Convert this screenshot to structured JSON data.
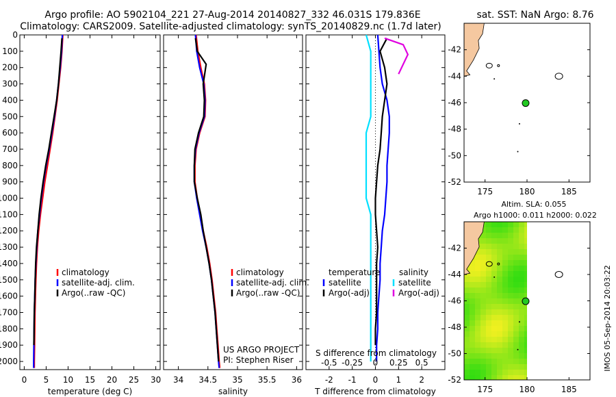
{
  "header": {
    "line1": "Argo profile: AO 5902104_221 27-Aug-2014 20140827_332 46.031S 179.836E",
    "line2": "Climatology: CARS2009. Satellite-adjusted climatology: synTS_20140829.nc (1.7d later)"
  },
  "colors": {
    "climatology": "#ff0000",
    "satellite_adj_clim": "#0000ff",
    "argo": "#000000",
    "salinity_satellite": "#00e0ff",
    "salinity_argo": "#e000e0",
    "land": "#f5c8a0",
    "argo_position": "#22c922",
    "sla_field": "#33dd11",
    "sla_high": "#f0f020"
  },
  "chart_data": [
    {
      "id": "temperature",
      "type": "line",
      "xlabel": "temperature (deg C)",
      "ylabel": "",
      "xlim": [
        -1,
        31
      ],
      "ylim": [
        2050,
        0
      ],
      "xticks": [
        0,
        5,
        10,
        15,
        20,
        25,
        30
      ],
      "yticks": [
        0,
        100,
        200,
        300,
        400,
        500,
        600,
        700,
        800,
        900,
        1000,
        1100,
        1200,
        1300,
        1400,
        1500,
        1600,
        1700,
        1800,
        1900,
        2000
      ],
      "legend": [
        "climatology",
        "satellite-adj. clim.",
        "Argo(..raw -QC)"
      ],
      "legend_placement": "lower-center",
      "series": [
        {
          "name": "climatology",
          "color": "#ff0000",
          "x": [
            8.8,
            8.6,
            8.3,
            7.9,
            7.5,
            7.0,
            6.5,
            5.9,
            5.3,
            4.7,
            4.2,
            3.7,
            3.3,
            3.0,
            2.8,
            2.65,
            2.55,
            2.45,
            2.4,
            2.35,
            2.3,
            2.3
          ],
          "y": [
            0,
            100,
            200,
            300,
            400,
            500,
            600,
            700,
            800,
            900,
            1000,
            1100,
            1200,
            1300,
            1400,
            1500,
            1600,
            1700,
            1800,
            1900,
            2000,
            2040
          ]
        },
        {
          "name": "satellite-adj. clim.",
          "color": "#0000ff",
          "x": [
            8.7,
            8.5,
            8.2,
            7.8,
            7.4,
            6.9,
            6.3,
            5.7,
            5.0,
            4.4,
            3.9,
            3.5,
            3.1,
            2.85,
            2.65,
            2.5,
            2.4,
            2.3,
            2.25,
            2.2,
            2.15,
            2.15
          ],
          "y": [
            0,
            100,
            200,
            300,
            400,
            500,
            600,
            700,
            800,
            900,
            1000,
            1100,
            1200,
            1300,
            1400,
            1500,
            1600,
            1700,
            1800,
            1900,
            2000,
            2040
          ]
        },
        {
          "name": "Argo(..raw -QC)",
          "color": "#000000",
          "x": [
            8.6,
            8.4,
            8.1,
            7.8,
            7.4,
            6.8,
            6.2,
            5.6,
            4.9,
            4.3,
            3.8,
            3.4,
            3.1,
            2.8,
            2.6,
            2.5,
            2.4,
            2.3,
            2.25,
            2.2
          ],
          "y": [
            20,
            100,
            200,
            300,
            400,
            500,
            600,
            700,
            800,
            900,
            1000,
            1100,
            1200,
            1300,
            1400,
            1500,
            1600,
            1700,
            1800,
            1900
          ]
        }
      ]
    },
    {
      "id": "salinity",
      "type": "line",
      "xlabel": "salinity",
      "ylabel": "",
      "xlim": [
        33.75,
        36.1
      ],
      "ylim": [
        2050,
        0
      ],
      "xticks": [
        34,
        34.5,
        35,
        35.5,
        36
      ],
      "xticklabels": [
        "34",
        "34.5",
        "35",
        "35.5",
        "36"
      ],
      "legend": [
        "climatology",
        "satellite-adj. clim.",
        "Argo(..raw -QC)"
      ],
      "legend_placement": "lower-right",
      "annotation": [
        "US ARGO PROJECT",
        "PI: Stephen Riser"
      ],
      "series": [
        {
          "name": "climatology",
          "color": "#ff0000",
          "x": [
            34.3,
            34.33,
            34.38,
            34.44,
            34.46,
            34.45,
            34.36,
            34.3,
            34.28,
            34.28,
            34.32,
            34.37,
            34.42,
            34.48,
            34.53,
            34.57,
            34.6,
            34.63,
            34.65,
            34.67,
            34.69,
            34.7
          ],
          "y": [
            0,
            100,
            200,
            300,
            400,
            500,
            600,
            700,
            800,
            900,
            1000,
            1100,
            1200,
            1300,
            1400,
            1500,
            1600,
            1700,
            1800,
            1900,
            2000,
            2040
          ]
        },
        {
          "name": "satellite-adj. clim.",
          "color": "#0000ff",
          "x": [
            34.29,
            34.31,
            34.36,
            34.43,
            34.45,
            34.44,
            34.35,
            34.29,
            34.27,
            34.27,
            34.31,
            34.36,
            34.41,
            34.47,
            34.52,
            34.56,
            34.59,
            34.62,
            34.64,
            34.66,
            34.68,
            34.69
          ],
          "y": [
            0,
            100,
            200,
            300,
            400,
            500,
            600,
            700,
            800,
            900,
            1000,
            1100,
            1200,
            1300,
            1400,
            1500,
            1600,
            1700,
            1800,
            1900,
            2000,
            2040
          ]
        },
        {
          "name": "Argo(..raw -QC)",
          "color": "#000000",
          "x": [
            34.29,
            34.32,
            34.47,
            34.42,
            34.44,
            34.43,
            34.34,
            34.28,
            34.27,
            34.27,
            34.32,
            34.38,
            34.42,
            34.47,
            34.52,
            34.56,
            34.59,
            34.62,
            34.64,
            34.66,
            34.68
          ],
          "y": [
            20,
            100,
            180,
            300,
            400,
            500,
            600,
            700,
            800,
            900,
            1000,
            1100,
            1200,
            1300,
            1400,
            1500,
            1600,
            1700,
            1800,
            1900,
            2000
          ]
        }
      ]
    },
    {
      "id": "differences",
      "type": "line",
      "xlabel": "T difference from climatology",
      "secondary_xlabel": "S difference from climatology",
      "xlim": [
        -3,
        3
      ],
      "ylim": [
        2050,
        0
      ],
      "xticks": [
        -2,
        -1,
        0,
        1,
        2
      ],
      "xticklabels": [
        "-2",
        "-1",
        "0",
        "1",
        "2"
      ],
      "secondary_xticks": [
        -0.5,
        -0.25,
        0,
        0.25,
        0.5
      ],
      "secondary_xticklabels": [
        "-0.5",
        "-0.25",
        "0",
        "0.25",
        "0.5"
      ],
      "legend_headers": [
        "temperature",
        "salinity"
      ],
      "legend": [
        "satellite",
        "Argo(-adj)",
        "satellite",
        "Argo(-adj)"
      ],
      "legend_placement": "lower-center",
      "series": [
        {
          "name": "satellite",
          "group": "temperature",
          "color": "#0000ff",
          "x": [
            0.1,
            0.15,
            0.2,
            0.3,
            0.5,
            0.6,
            0.6,
            0.55,
            0.5,
            0.5,
            0.45,
            0.4,
            0.3,
            0.25,
            0.2,
            0.2,
            0.15,
            0.1,
            0.1,
            0.05,
            0.05
          ],
          "y": [
            0,
            100,
            200,
            300,
            400,
            500,
            600,
            700,
            800,
            900,
            1000,
            1100,
            1200,
            1300,
            1400,
            1500,
            1600,
            1700,
            1800,
            1900,
            2000
          ]
        },
        {
          "name": "Argo(-adj)",
          "group": "temperature",
          "color": "#000000",
          "x": [
            0.5,
            0.2,
            0.4,
            0.5,
            0.4,
            0.3,
            0.25,
            0.2,
            0.1,
            0.05,
            0.0,
            0.0,
            0.05,
            0.1,
            0.05,
            0.05,
            0.05,
            0.05,
            0.0,
            0.0
          ],
          "y": [
            20,
            100,
            200,
            300,
            400,
            500,
            600,
            700,
            800,
            900,
            1000,
            1100,
            1200,
            1300,
            1400,
            1500,
            1600,
            1700,
            1800,
            1900
          ]
        },
        {
          "name": "satellite",
          "group": "salinity",
          "color": "#00e0ff",
          "x": [
            -0.1,
            -0.05,
            -0.05,
            -0.05,
            -0.05,
            -0.05,
            -0.1,
            -0.1,
            -0.1,
            -0.1,
            -0.1,
            -0.05,
            -0.05,
            -0.05,
            -0.05,
            -0.05,
            -0.05,
            -0.05,
            -0.05,
            -0.05,
            -0.05
          ],
          "y": [
            0,
            100,
            200,
            300,
            400,
            500,
            600,
            700,
            800,
            900,
            1000,
            1100,
            1200,
            1300,
            1400,
            1500,
            1600,
            1700,
            1800,
            1900,
            2000
          ]
        },
        {
          "name": "Argo(-adj)",
          "group": "salinity",
          "color": "#e000e0",
          "x": [
            0.1,
            0.3,
            0.35,
            0.3,
            0.25
          ],
          "y": [
            20,
            60,
            120,
            180,
            240
          ]
        }
      ]
    },
    {
      "id": "sst-map",
      "type": "map",
      "title": "sat. SST: NaN Argo: 8.76",
      "xlim": [
        172.5,
        187.5
      ],
      "ylim": [
        -52,
        -40
      ],
      "xticks": [
        175,
        180,
        185
      ],
      "yticks": [
        -42,
        -44,
        -46,
        -48,
        -50,
        -52
      ],
      "argo_position": {
        "lon": 179.836,
        "lat": -46.031
      }
    },
    {
      "id": "sla-map",
      "type": "heatmap",
      "title_lines": [
        "Altim. SLA: 0.055",
        "Argo h1000: 0.011 h2000: 0.022"
      ],
      "xlim": [
        172.5,
        187.5
      ],
      "ylim": [
        -52,
        -40
      ],
      "xticks": [
        175,
        180,
        185
      ],
      "yticks": [
        -42,
        -44,
        -46,
        -48,
        -50,
        -52
      ],
      "field_lon_range": [
        172.5,
        180
      ],
      "argo_position": {
        "lon": 179.836,
        "lat": -46.031
      }
    }
  ],
  "footer": {
    "stamp": "IMOS 05-Sep-2014 20:03:22"
  }
}
